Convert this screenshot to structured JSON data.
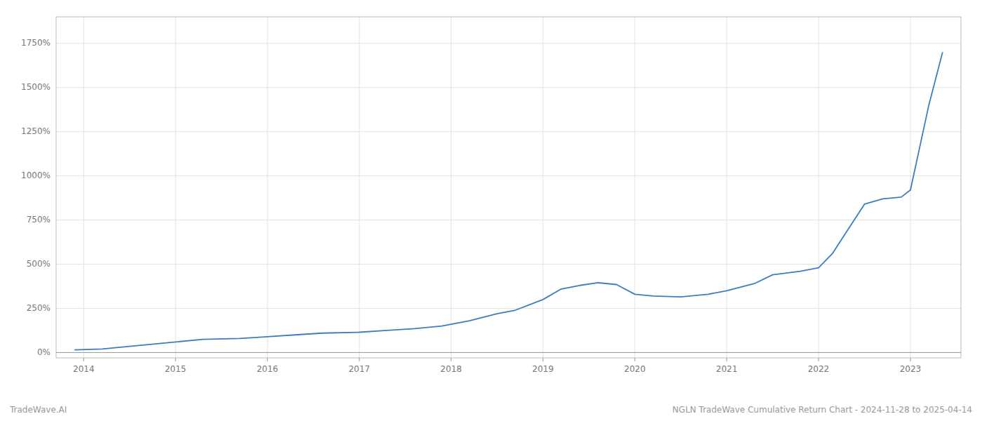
{
  "chart_data": {
    "type": "line",
    "title": "NGLN TradeWave Cumulative Return Chart - 2024-11-28 to 2025-04-14",
    "annotations": [
      "TradeWave.AI"
    ],
    "color": "#3a7ebf",
    "x": [
      2013.9,
      2014.2,
      2014.5,
      2014.8,
      2015.0,
      2015.3,
      2015.7,
      2016.0,
      2016.3,
      2016.6,
      2017.0,
      2017.3,
      2017.6,
      2017.9,
      2018.2,
      2018.5,
      2018.7,
      2019.0,
      2019.2,
      2019.4,
      2019.6,
      2019.8,
      2020.0,
      2020.2,
      2020.5,
      2020.8,
      2021.0,
      2021.3,
      2021.5,
      2021.8,
      2022.0,
      2022.15,
      2022.3,
      2022.5,
      2022.7,
      2022.9,
      2023.0,
      2023.2,
      2023.35
    ],
    "values": [
      15,
      20,
      35,
      50,
      60,
      75,
      80,
      90,
      100,
      110,
      115,
      125,
      135,
      150,
      180,
      220,
      240,
      300,
      360,
      380,
      395,
      385,
      330,
      320,
      315,
      330,
      350,
      390,
      440,
      460,
      480,
      560,
      680,
      840,
      870,
      880,
      920,
      1400,
      1700
    ],
    "xlim": [
      2013.7,
      2023.55
    ],
    "xticks": [
      2014,
      2015,
      2016,
      2017,
      2018,
      2019,
      2020,
      2021,
      2022,
      2023
    ],
    "ylim": [
      -30,
      1900
    ],
    "yticks": [
      {
        "value": 0,
        "label": "0%"
      },
      {
        "value": 250,
        "label": "250%"
      },
      {
        "value": 500,
        "label": "500%"
      },
      {
        "value": 750,
        "label": "750%"
      },
      {
        "value": 1000,
        "label": "1000%"
      },
      {
        "value": 1250,
        "label": "1250%"
      },
      {
        "value": 1500,
        "label": "1500%"
      },
      {
        "value": 1750,
        "label": "1750%"
      }
    ],
    "grid": true
  }
}
